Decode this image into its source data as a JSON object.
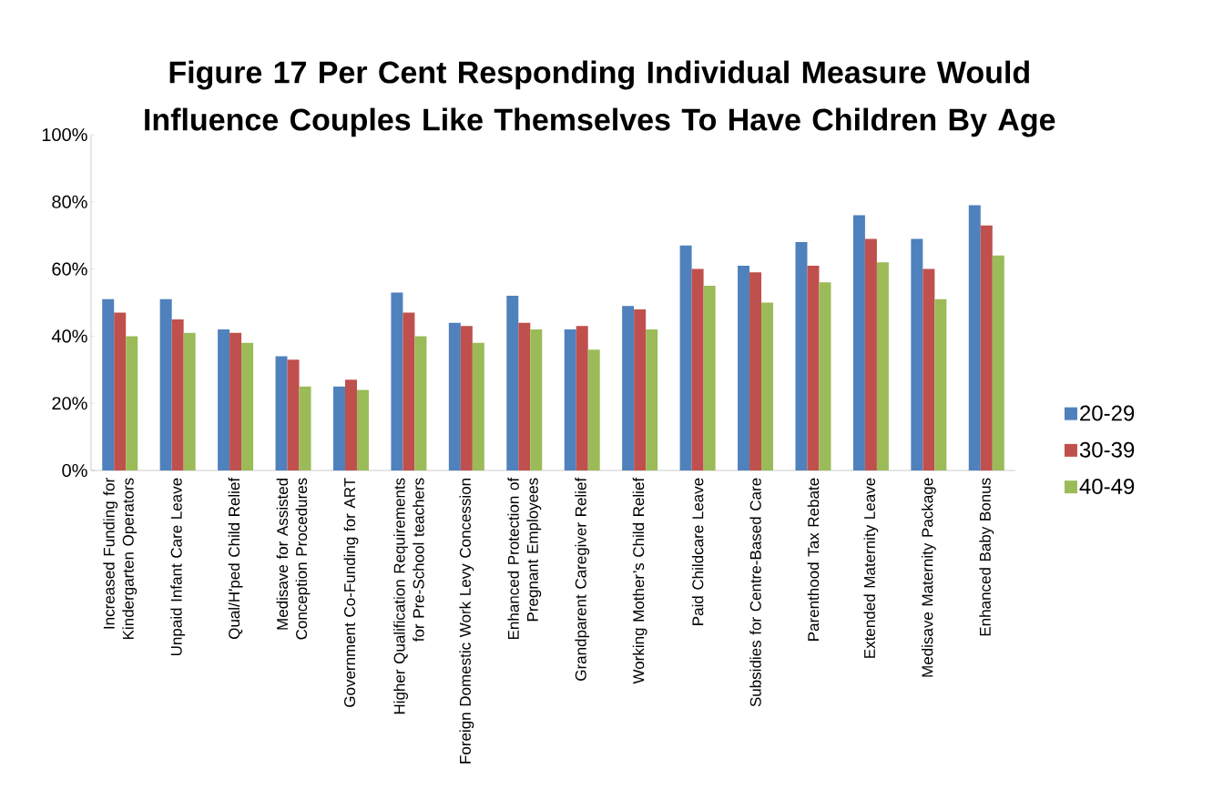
{
  "chart_data": {
    "type": "bar",
    "title": "Figure 17 Per Cent Responding Individual  Measure Would Influence Couples Like Themselves To Have Children By Age",
    "categories": [
      "Increased Funding for Kindergarten Operators",
      "Unpaid Infant Care Leave",
      "Qual/H'ped Child Relief",
      "Medisave for Assisted Conception Procedures",
      "Government Co-Funding for ART",
      "Higher Qualification Requirements for Pre-School teachers",
      "Foreign Domestic Work Levy Concession",
      "Enhanced Protection of Pregnant Employees",
      "Grandparent Caregiver Relief",
      "Working Mother’s Child Relief",
      "Paid Childcare Leave",
      "Subsidies for Centre-Based Care",
      "Parenthood Tax Rebate",
      "Extended Maternity Leave",
      "Medisave Maternity Package",
      "Enhanced Baby Bonus"
    ],
    "series": [
      {
        "name": "20-29",
        "color": "#4f81bd",
        "values": [
          51,
          51,
          42,
          34,
          25,
          53,
          44,
          52,
          42,
          49,
          67,
          61,
          68,
          76,
          69,
          79
        ]
      },
      {
        "name": "30-39",
        "color": "#c0504d",
        "values": [
          47,
          45,
          41,
          33,
          27,
          47,
          43,
          44,
          43,
          48,
          60,
          59,
          61,
          69,
          60,
          73
        ]
      },
      {
        "name": "40-49",
        "color": "#9bbb59",
        "values": [
          40,
          41,
          38,
          25,
          24,
          40,
          38,
          42,
          36,
          42,
          55,
          50,
          56,
          62,
          51,
          64
        ]
      }
    ],
    "ylim": [
      0,
      100
    ],
    "yticks": [
      {
        "value": 0,
        "label": "0%"
      },
      {
        "value": 20,
        "label": "20%"
      },
      {
        "value": 40,
        "label": "40%"
      },
      {
        "value": 60,
        "label": "60%"
      },
      {
        "value": 80,
        "label": "80%"
      },
      {
        "value": 100,
        "label": "100%"
      }
    ],
    "legend": "right"
  }
}
